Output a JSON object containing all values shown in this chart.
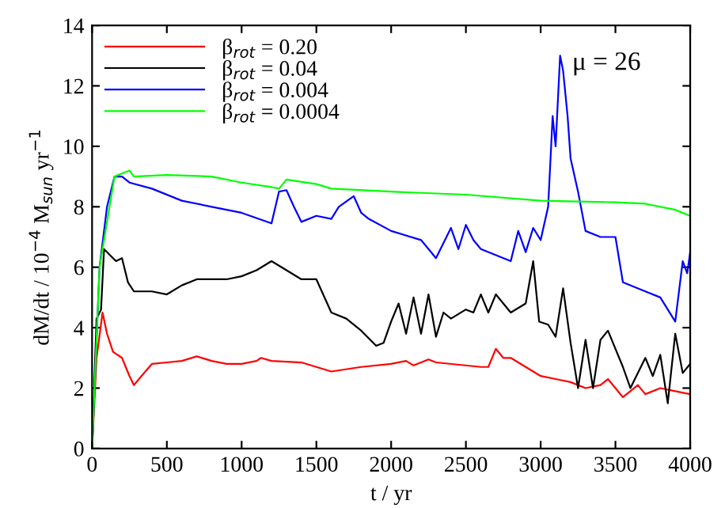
{
  "chart_data": {
    "type": "line",
    "xlabel": "t / yr",
    "ylabel": "dM/dt / 10$^{−4}$ M$_{sun}$ yr$^{−1}$",
    "annotations": [
      "μ = 26"
    ],
    "xlim": [
      0,
      4000
    ],
    "ylim": [
      0,
      14
    ],
    "xticks": [
      0,
      500,
      1000,
      1500,
      2000,
      2500,
      3000,
      3500,
      4000
    ],
    "yticks": [
      0,
      2,
      4,
      6,
      8,
      10,
      12,
      14
    ],
    "grid": false,
    "legend": "top left",
    "line_style": "solid",
    "marker": "none",
    "series": [
      {
        "name": "β$_{rot}$ = 0.20",
        "color": "#ff0000",
        "x": [
          0,
          30,
          70,
          100,
          140,
          200,
          250,
          280,
          330,
          400,
          500,
          600,
          700,
          800,
          900,
          1000,
          1100,
          1130,
          1200,
          1400,
          1600,
          1800,
          2000,
          2100,
          2150,
          2250,
          2300,
          2600,
          2650,
          2700,
          2750,
          2800,
          2900,
          3000,
          3100,
          3200,
          3300,
          3400,
          3450,
          3500,
          3550,
          3600,
          3650,
          3700,
          3800,
          3900,
          4000
        ],
        "values": [
          0,
          3,
          4.5,
          3.8,
          3.2,
          3.0,
          2.4,
          2.1,
          2.4,
          2.8,
          2.85,
          2.9,
          3.05,
          2.9,
          2.8,
          2.8,
          2.9,
          3.0,
          2.9,
          2.85,
          2.55,
          2.7,
          2.8,
          2.9,
          2.75,
          2.95,
          2.85,
          2.7,
          2.7,
          3.3,
          3.0,
          3.0,
          2.7,
          2.4,
          2.3,
          2.2,
          2.0,
          2.1,
          2.3,
          2.0,
          1.7,
          1.9,
          2.1,
          1.8,
          2.0,
          1.9,
          1.8
        ]
      },
      {
        "name": "β$_{rot}$ = 0.04",
        "color": "#000000",
        "x": [
          0,
          30,
          60,
          80,
          120,
          160,
          200,
          240,
          280,
          400,
          500,
          600,
          700,
          900,
          1000,
          1100,
          1200,
          1300,
          1400,
          1500,
          1600,
          1700,
          1800,
          1900,
          1950,
          2000,
          2050,
          2100,
          2150,
          2200,
          2250,
          2300,
          2350,
          2400,
          2500,
          2550,
          2600,
          2650,
          2700,
          2800,
          2900,
          2950,
          2990,
          3050,
          3100,
          3150,
          3200,
          3250,
          3300,
          3350,
          3400,
          3450,
          3550,
          3600,
          3700,
          3750,
          3800,
          3850,
          3900,
          3950,
          4000
        ],
        "values": [
          0,
          4.3,
          4.6,
          6.6,
          6.4,
          6.2,
          6.3,
          5.5,
          5.2,
          5.2,
          5.1,
          5.4,
          5.6,
          5.6,
          5.7,
          5.9,
          6.2,
          5.9,
          5.6,
          5.6,
          4.5,
          4.3,
          3.9,
          3.4,
          3.5,
          4.2,
          4.8,
          3.8,
          5.0,
          3.8,
          5.1,
          3.7,
          4.5,
          4.3,
          4.6,
          4.5,
          5.1,
          4.5,
          5.1,
          4.5,
          4.8,
          6.2,
          4.2,
          4.1,
          3.7,
          5.3,
          3.5,
          2.0,
          3.6,
          2.0,
          3.6,
          3.9,
          2.7,
          2.0,
          3.0,
          2.4,
          3.1,
          1.5,
          3.8,
          2.5,
          2.8
        ]
      },
      {
        "name": "β$_{rot}$ = 0.004",
        "color": "#0000ff",
        "x": [
          0,
          50,
          100,
          150,
          200,
          250,
          400,
          600,
          800,
          1000,
          1200,
          1250,
          1300,
          1350,
          1400,
          1500,
          1600,
          1650,
          1750,
          1800,
          1850,
          2000,
          2200,
          2300,
          2400,
          2450,
          2500,
          2550,
          2600,
          2800,
          2850,
          2900,
          2950,
          3000,
          3050,
          3080,
          3100,
          3130,
          3150,
          3180,
          3200,
          3250,
          3300,
          3400,
          3500,
          3550,
          3700,
          3800,
          3900,
          3950,
          3980,
          4000
        ],
        "values": [
          0,
          6,
          8,
          9.0,
          9.0,
          8.8,
          8.6,
          8.2,
          8.0,
          7.8,
          7.45,
          8.5,
          8.55,
          8.0,
          7.5,
          7.7,
          7.6,
          8.0,
          8.35,
          7.8,
          7.6,
          7.2,
          6.9,
          6.3,
          7.3,
          6.6,
          7.4,
          6.9,
          6.6,
          6.2,
          7.2,
          6.5,
          7.3,
          6.9,
          8,
          11,
          10,
          13,
          12.5,
          11,
          9.6,
          8.5,
          7.2,
          7.0,
          7.0,
          5.5,
          5.2,
          5.0,
          4.2,
          6.2,
          5.8,
          6.5
        ]
      },
      {
        "name": "β$_{rot}$ = 0.0004",
        "color": "#00ff00",
        "x": [
          0,
          50,
          150,
          200,
          250,
          280,
          500,
          800,
          1000,
          1200,
          1250,
          1300,
          1500,
          1600,
          2000,
          2500,
          3000,
          3500,
          3700,
          3900,
          4000
        ],
        "values": [
          0,
          6,
          9,
          9.1,
          9.2,
          9.0,
          9.05,
          9.0,
          8.8,
          8.65,
          8.6,
          8.9,
          8.75,
          8.6,
          8.5,
          8.4,
          8.2,
          8.15,
          8.1,
          7.9,
          7.7
        ]
      }
    ]
  }
}
